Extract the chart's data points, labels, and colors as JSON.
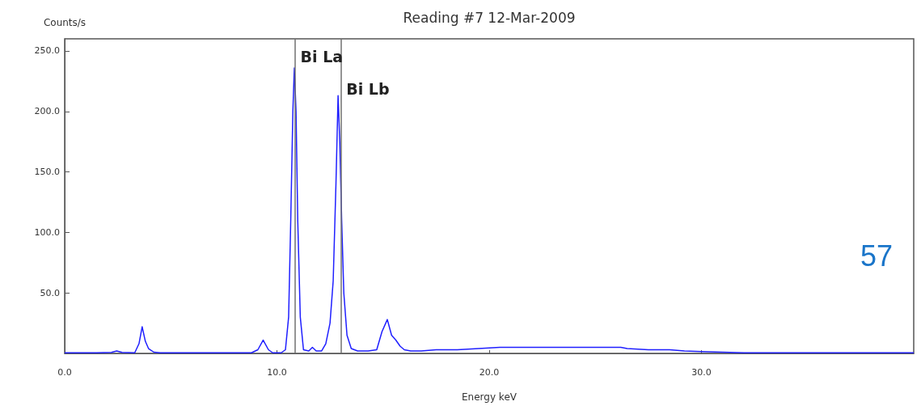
{
  "chart_data": {
    "type": "line",
    "title": "Reading #7 12-Mar-2009",
    "xlabel": "Energy keV",
    "ylabel": "Counts/s",
    "x": [
      0,
      1.5,
      2.2,
      2.45,
      2.7,
      3.3,
      3.5,
      3.65,
      3.8,
      3.95,
      4.2,
      4.5,
      8.8,
      9.1,
      9.35,
      9.6,
      9.8,
      10.2,
      10.4,
      10.55,
      10.65,
      10.75,
      10.82,
      10.9,
      10.98,
      11.1,
      11.25,
      11.5,
      11.67,
      11.85,
      12.1,
      12.3,
      12.5,
      12.65,
      12.78,
      12.88,
      12.96,
      13.05,
      13.15,
      13.3,
      13.5,
      13.8,
      14.3,
      14.7,
      14.95,
      15.2,
      15.4,
      15.6,
      15.8,
      16.0,
      16.3,
      16.8,
      17.5,
      18.5,
      19.5,
      20.5,
      21.5,
      22.5,
      23.5,
      24.5,
      25.5,
      26.2,
      26.5,
      27.5,
      28.5,
      29.2,
      30,
      31,
      32,
      34,
      36,
      38,
      40
    ],
    "series": [
      {
        "color": "#1f1fff",
        "values": [
          0.5,
          0.5,
          0.8,
          2,
          0.8,
          0.5,
          8,
          22,
          10,
          4,
          1,
          0.5,
          0.5,
          3,
          11,
          3,
          0.5,
          0.5,
          3,
          30,
          110,
          200,
          236,
          200,
          110,
          30,
          3,
          2,
          5,
          2,
          2,
          8,
          25,
          60,
          140,
          213,
          175,
          110,
          50,
          15,
          4,
          2,
          2,
          3,
          18,
          28,
          15,
          11,
          6,
          3,
          2,
          2,
          3,
          3,
          4,
          5,
          5,
          5,
          5,
          5,
          5,
          5,
          4,
          3,
          3,
          2,
          1.5,
          1,
          0.5,
          0.5,
          0.5,
          0.5,
          0.5
        ]
      }
    ],
    "xlim": [
      0,
      40
    ],
    "ylim": [
      0,
      260
    ],
    "xticks": [
      {
        "value": 0,
        "label": "0.0"
      },
      {
        "value": 10,
        "label": "10.0"
      },
      {
        "value": 20,
        "label": "20.0"
      },
      {
        "value": 30,
        "label": "30.0"
      }
    ],
    "yticks": [
      {
        "value": 50,
        "label": "50.0"
      },
      {
        "value": 100,
        "label": "100.0"
      },
      {
        "value": 150,
        "label": "150.0"
      },
      {
        "value": 200,
        "label": "200.0"
      },
      {
        "value": 250,
        "label": "250.0"
      }
    ],
    "ref_lines": [
      {
        "axis": "x",
        "value": 10.84,
        "label": "Bi La",
        "color": "#707070"
      },
      {
        "axis": "x",
        "value": 13.0,
        "label": "Bi Lb",
        "color": "#707070"
      }
    ],
    "annotations": [
      "57"
    ],
    "grid": false,
    "marker": "none",
    "line_style": "solid"
  }
}
